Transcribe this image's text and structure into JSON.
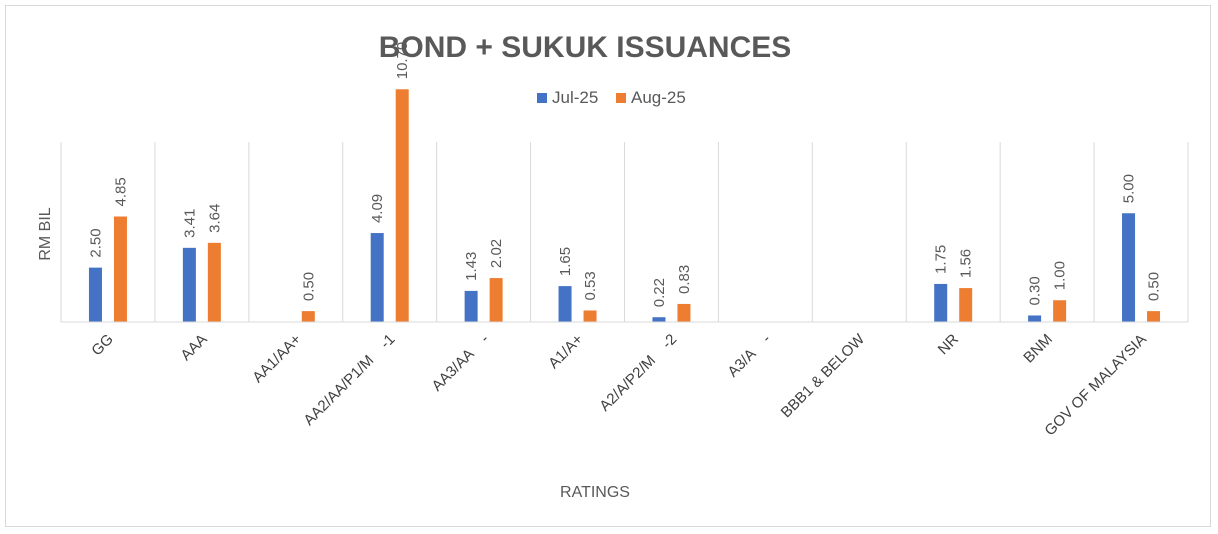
{
  "chart_data": {
    "type": "bar",
    "title": "BOND + SUKUK ISSUANCES",
    "xlabel": "RATINGS",
    "ylabel": "RM BIL",
    "categories": [
      "GG",
      "AAA",
      "AA1/AA+",
      "AA2/AA/P1/M    -1",
      "AA3/AA    -",
      "A1/A+",
      "A2/A/P2/M    -2",
      "A3/A    -",
      "BBB1 & BELOW",
      "NR",
      "BNM",
      "GOV OF MALAYSIA"
    ],
    "series": [
      {
        "name": "Jul-25",
        "color": "#4472c4",
        "values": [
          2.5,
          3.41,
          null,
          4.09,
          1.43,
          1.65,
          0.22,
          null,
          null,
          1.75,
          0.3,
          5.0
        ],
        "labels": [
          "2.50",
          "3.41",
          "",
          "4.09",
          "1.43",
          "1.65",
          "0.22",
          "",
          "",
          "1.75",
          "0.30",
          "5.00"
        ]
      },
      {
        "name": "Aug-25",
        "color": "#ed7d31",
        "values": [
          4.85,
          3.64,
          0.5,
          10.7,
          2.02,
          0.53,
          0.83,
          null,
          null,
          1.56,
          1.0,
          0.5
        ],
        "labels": [
          "4.85",
          "3.64",
          "0.50",
          "10.70",
          "2.02",
          "0.53",
          "0.83",
          "",
          "",
          "1.56",
          "1.00",
          "0.50"
        ]
      }
    ],
    "ylim": [
      0,
      12
    ],
    "grid": "vertical category separators",
    "legend": "top-center"
  }
}
